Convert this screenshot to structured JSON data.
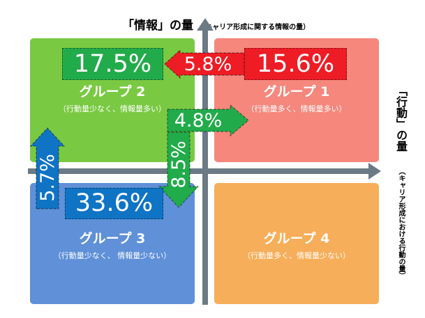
{
  "top_axis": {
    "title": "「情報」の量",
    "subtitle": "（キャリア形成に関する情報の量）"
  },
  "right_axis": {
    "title": "「行動」の量",
    "subtitle": "（キャリア形成における行動の量）"
  },
  "quadrants": {
    "q1": {
      "name": "グループ 1",
      "desc": "（行動量多く、情報量多い）",
      "color": "#f5877d"
    },
    "q2": {
      "name": "グループ 2",
      "desc": "（行動量少なく、情報量多い）",
      "color": "#7ac943"
    },
    "q3": {
      "name": "グループ 3",
      "desc": "（行動量少なく、 情報量少ない）",
      "color": "#5f90d8"
    },
    "q4": {
      "name": "グループ 4",
      "desc": "（行動量多く、情報量少ない）",
      "color": "#f6ae5a"
    }
  },
  "values": {
    "group2": "17.5%",
    "group1": "15.6%",
    "group3": "33.6%",
    "flow_1_to_2": "5.8%",
    "flow_2_to_1": "4.8%",
    "flow_2_to_3": "8.5%",
    "flow_3_to_2": "5.7%"
  },
  "colors": {
    "green": "#22ab4a",
    "red": "#ee1c25",
    "blue": "#1074c5",
    "axis": "#6b7a85"
  }
}
